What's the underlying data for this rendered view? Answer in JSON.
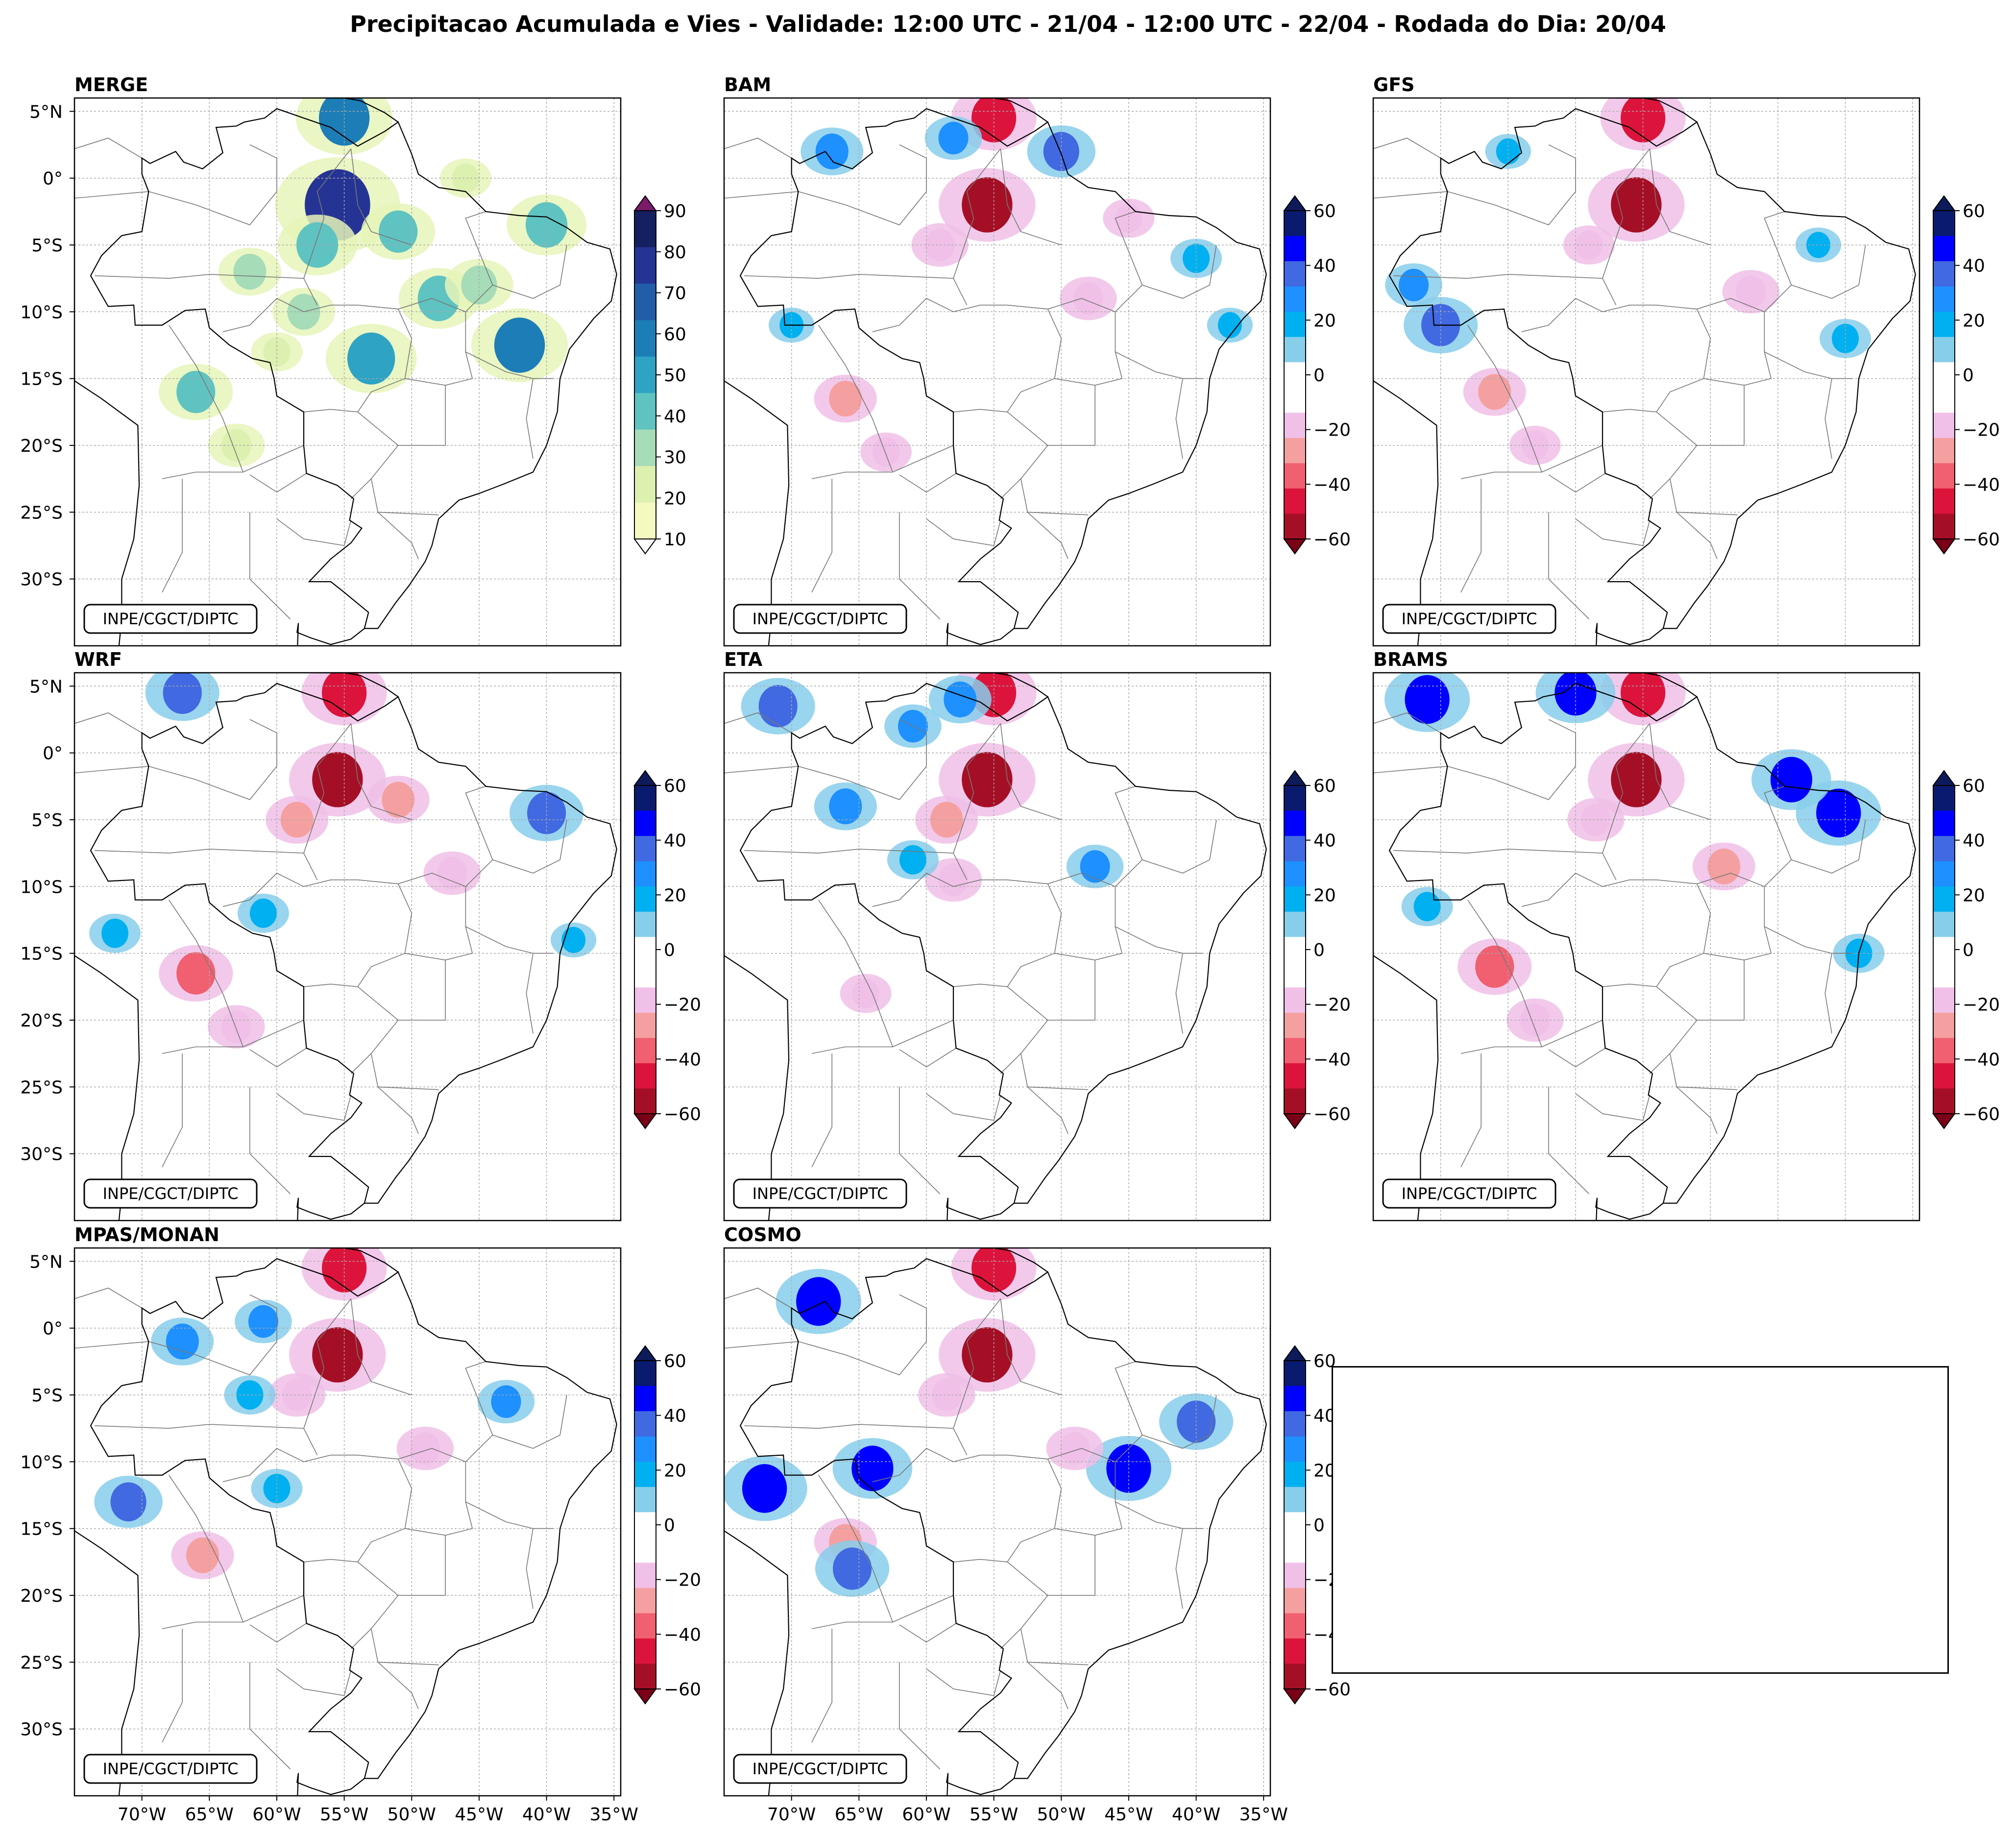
{
  "title": "Precipitacao Acumulada e Vies - Validade: 12:00 UTC - 21/04 - 12:00 UTC - 22/04 - Rodada do Dia: 20/04",
  "credit": "INPE/CGCT/DIPTC",
  "panels": [
    {
      "id": "merge",
      "title": "MERGE",
      "scale": "precip"
    },
    {
      "id": "bam",
      "title": "BAM",
      "scale": "bias"
    },
    {
      "id": "gfs",
      "title": "GFS",
      "scale": "bias"
    },
    {
      "id": "wrf",
      "title": "WRF",
      "scale": "bias"
    },
    {
      "id": "eta",
      "title": "ETA",
      "scale": "bias"
    },
    {
      "id": "brams",
      "title": "BRAMS",
      "scale": "bias"
    },
    {
      "id": "mpas",
      "title": "MPAS/MONAN",
      "scale": "bias"
    },
    {
      "id": "cosmo",
      "title": "COSMO",
      "scale": "bias"
    }
  ],
  "lat_ticks": [
    "5°N",
    "0°",
    "5°S",
    "10°S",
    "15°S",
    "20°S",
    "25°S",
    "30°S"
  ],
  "lon_ticks": [
    "70°W",
    "65°W",
    "60°W",
    "55°W",
    "50°W",
    "45°W",
    "40°W",
    "35°W"
  ],
  "precip_colorbar": {
    "ticks": [
      "10",
      "20",
      "30",
      "40",
      "50",
      "60",
      "70",
      "80",
      "90"
    ],
    "colors": [
      "#f4f9c0",
      "#dcf0b0",
      "#a6dcb8",
      "#5fc3c1",
      "#2ea3c4",
      "#1d7db7",
      "#225ea8",
      "#253494",
      "#142060"
    ],
    "under_color": "#ffffff",
    "over_color": "#7a1b6a"
  },
  "bias_colorbar": {
    "ticks": [
      "60",
      "40",
      "20",
      "0",
      "−20",
      "−40",
      "−60"
    ],
    "colors": [
      "#0a1a6e",
      "#0000ff",
      "#4169e1",
      "#1e90ff",
      "#00b0f0",
      "#87ceeb",
      "#ffffff",
      "#ffffff",
      "#f0c0e8",
      "#f5a0a0",
      "#f06070",
      "#dc143c",
      "#a50f25"
    ],
    "over_color": "#0d1b5a",
    "under_color": "#7a0018"
  },
  "features": {
    "merge": [
      {
        "lon": -55.5,
        "lat": -2.0,
        "v": 85
      },
      {
        "lon": -55.0,
        "lat": 4.5,
        "v": 60
      },
      {
        "lon": -57.0,
        "lat": -5.0,
        "v": 45
      },
      {
        "lon": -66.0,
        "lat": -16.0,
        "v": 40
      },
      {
        "lon": -48.0,
        "lat": -9.0,
        "v": 45
      },
      {
        "lon": -45.0,
        "lat": -8.0,
        "v": 35
      },
      {
        "lon": -42.0,
        "lat": -12.5,
        "v": 60
      },
      {
        "lon": -51.0,
        "lat": -4.0,
        "v": 40
      },
      {
        "lon": -62.0,
        "lat": -7.0,
        "v": 30
      },
      {
        "lon": -53.0,
        "lat": -13.5,
        "v": 55
      },
      {
        "lon": -40.0,
        "lat": -3.5,
        "v": 45
      },
      {
        "lon": -63.0,
        "lat": -20.0,
        "v": 25
      },
      {
        "lon": -60.0,
        "lat": -13.0,
        "v": 20
      },
      {
        "lon": -46.0,
        "lat": 0.0,
        "v": 20
      },
      {
        "lon": -58.0,
        "lat": -10.0,
        "v": 30
      }
    ],
    "bam": [
      {
        "lon": -55.5,
        "lat": -2.0,
        "v": -60
      },
      {
        "lon": -55.0,
        "lat": 4.5,
        "v": -50
      },
      {
        "lon": -59.0,
        "lat": -5.0,
        "v": -25
      },
      {
        "lon": -66.0,
        "lat": -16.5,
        "v": -30
      },
      {
        "lon": -63.0,
        "lat": -20.5,
        "v": -20
      },
      {
        "lon": -67.0,
        "lat": 2.0,
        "v": 30
      },
      {
        "lon": -58.0,
        "lat": 3.0,
        "v": 25
      },
      {
        "lon": -50.0,
        "lat": 2.0,
        "v": 35
      },
      {
        "lon": -70.0,
        "lat": -11.0,
        "v": 15
      },
      {
        "lon": -48.0,
        "lat": -9.0,
        "v": -25
      },
      {
        "lon": -40.0,
        "lat": -6.0,
        "v": 20
      },
      {
        "lon": -37.5,
        "lat": -11.0,
        "v": 15
      },
      {
        "lon": -45.0,
        "lat": -3.0,
        "v": -20
      }
    ],
    "gfs": [
      {
        "lon": -55.5,
        "lat": -2.0,
        "v": -60
      },
      {
        "lon": -55.0,
        "lat": 4.5,
        "v": -50
      },
      {
        "lon": -59.0,
        "lat": -5.0,
        "v": -20
      },
      {
        "lon": -66.0,
        "lat": -16.0,
        "v": -30
      },
      {
        "lon": -63.0,
        "lat": -20.0,
        "v": -20
      },
      {
        "lon": -70.0,
        "lat": -11.0,
        "v": 40
      },
      {
        "lon": -72.0,
        "lat": -8.0,
        "v": 25
      },
      {
        "lon": -47.0,
        "lat": -8.5,
        "v": -25
      },
      {
        "lon": -40.0,
        "lat": -12.0,
        "v": 20
      },
      {
        "lon": -42.0,
        "lat": -5.0,
        "v": 15
      },
      {
        "lon": -65.0,
        "lat": 2.0,
        "v": 15
      }
    ],
    "wrf": [
      {
        "lon": -55.5,
        "lat": -2.0,
        "v": -60
      },
      {
        "lon": -55.0,
        "lat": 4.5,
        "v": -50
      },
      {
        "lon": -58.5,
        "lat": -5.0,
        "v": -30
      },
      {
        "lon": -66.0,
        "lat": -16.5,
        "v": -40
      },
      {
        "lon": -63.0,
        "lat": -20.5,
        "v": -25
      },
      {
        "lon": -40.0,
        "lat": -4.5,
        "v": 40
      },
      {
        "lon": -72.0,
        "lat": -13.5,
        "v": 20
      },
      {
        "lon": -67.0,
        "lat": 4.5,
        "v": 40
      },
      {
        "lon": -51.0,
        "lat": -3.5,
        "v": -30
      },
      {
        "lon": -47.0,
        "lat": -9.0,
        "v": -25
      },
      {
        "lon": -61.0,
        "lat": -12.0,
        "v": 20
      },
      {
        "lon": -38.0,
        "lat": -14.0,
        "v": 15
      }
    ],
    "eta": [
      {
        "lon": -55.5,
        "lat": -2.0,
        "v": -60
      },
      {
        "lon": -55.0,
        "lat": 4.5,
        "v": -50
      },
      {
        "lon": -58.5,
        "lat": -5.0,
        "v": -30
      },
      {
        "lon": -64.5,
        "lat": -18.0,
        "v": -20
      },
      {
        "lon": -71.0,
        "lat": 3.5,
        "v": 40
      },
      {
        "lon": -66.0,
        "lat": -4.0,
        "v": 30
      },
      {
        "lon": -61.0,
        "lat": 2.0,
        "v": 25
      },
      {
        "lon": -57.5,
        "lat": 4.0,
        "v": 30
      },
      {
        "lon": -47.5,
        "lat": -8.5,
        "v": 25
      },
      {
        "lon": -58.0,
        "lat": -9.5,
        "v": -25
      },
      {
        "lon": -61.0,
        "lat": -8.0,
        "v": 20
      }
    ],
    "brams": [
      {
        "lon": -55.5,
        "lat": -2.0,
        "v": -60
      },
      {
        "lon": -55.0,
        "lat": 4.5,
        "v": -50
      },
      {
        "lon": -58.5,
        "lat": -5.0,
        "v": -25
      },
      {
        "lon": -66.0,
        "lat": -16.0,
        "v": -40
      },
      {
        "lon": -63.0,
        "lat": -20.0,
        "v": -25
      },
      {
        "lon": -71.0,
        "lat": 4.0,
        "v": 50
      },
      {
        "lon": -60.0,
        "lat": 4.5,
        "v": 45
      },
      {
        "lon": -40.5,
        "lat": -4.5,
        "v": 50
      },
      {
        "lon": -44.0,
        "lat": -2.0,
        "v": 45
      },
      {
        "lon": -49.0,
        "lat": -8.5,
        "v": -30
      },
      {
        "lon": -71.0,
        "lat": -11.5,
        "v": 20
      },
      {
        "lon": -39.0,
        "lat": -15.0,
        "v": 20
      }
    ],
    "mpas": [
      {
        "lon": -55.5,
        "lat": -2.0,
        "v": -60
      },
      {
        "lon": -55.0,
        "lat": 4.5,
        "v": -50
      },
      {
        "lon": -58.5,
        "lat": -5.0,
        "v": -25
      },
      {
        "lon": -65.5,
        "lat": -17.0,
        "v": -30
      },
      {
        "lon": -71.0,
        "lat": -13.0,
        "v": 35
      },
      {
        "lon": -67.0,
        "lat": -1.0,
        "v": 30
      },
      {
        "lon": -61.0,
        "lat": 0.5,
        "v": 25
      },
      {
        "lon": -43.0,
        "lat": -5.5,
        "v": 25
      },
      {
        "lon": -60.0,
        "lat": -12.0,
        "v": 20
      },
      {
        "lon": -49.0,
        "lat": -9.0,
        "v": -25
      },
      {
        "lon": -62.0,
        "lat": -5.0,
        "v": 20
      }
    ],
    "cosmo": [
      {
        "lon": -55.5,
        "lat": -2.0,
        "v": -60
      },
      {
        "lon": -55.0,
        "lat": 4.5,
        "v": -50
      },
      {
        "lon": -58.5,
        "lat": -5.0,
        "v": -25
      },
      {
        "lon": -66.0,
        "lat": -16.0,
        "v": -30
      },
      {
        "lon": -68.0,
        "lat": 2.0,
        "v": 50
      },
      {
        "lon": -72.0,
        "lat": -12.0,
        "v": 50
      },
      {
        "lon": -64.0,
        "lat": -10.5,
        "v": 45
      },
      {
        "lon": -45.0,
        "lat": -10.5,
        "v": 50
      },
      {
        "lon": -40.0,
        "lat": -7.0,
        "v": 40
      },
      {
        "lon": -49.0,
        "lat": -9.0,
        "v": -25
      },
      {
        "lon": -65.5,
        "lat": -18.0,
        "v": 40
      }
    ]
  }
}
